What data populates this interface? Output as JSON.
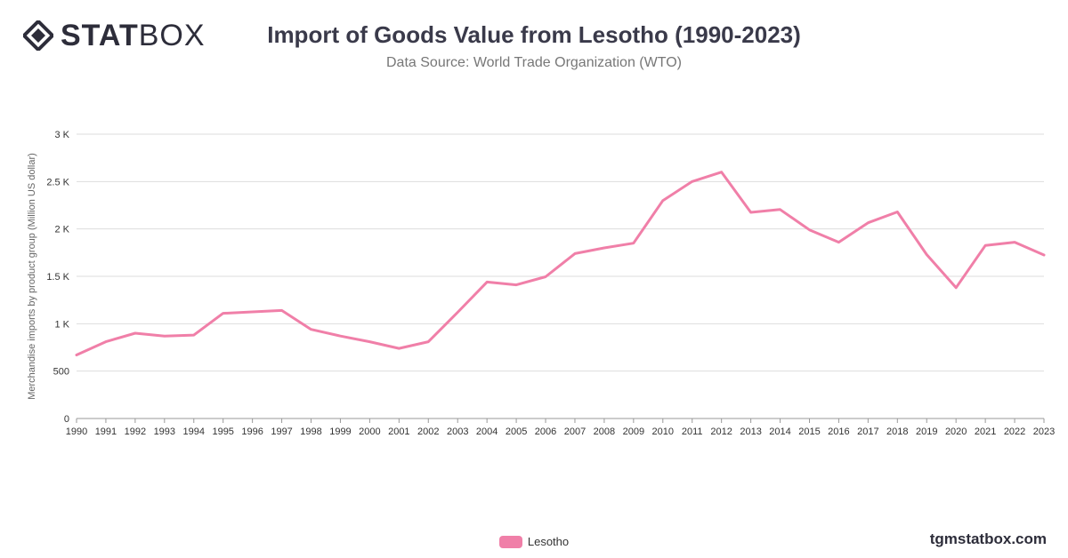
{
  "header": {
    "logo_bold": "STAT",
    "logo_light": "BOX",
    "title": "Import of Goods Value from Lesotho (1990-2023)",
    "subtitle": "Data Source: World Trade Organization (WTO)"
  },
  "footer": {
    "watermark": "tgmstatbox.com"
  },
  "colors": {
    "line": "#f07fa8",
    "grid": "#dddddd",
    "axis_text": "#333333",
    "logo": "#2d2d3a"
  },
  "chart_data": {
    "type": "line",
    "title": "Import of Goods Value from Lesotho (1990-2023)",
    "subtitle": "Data Source: World Trade Organization (WTO)",
    "xlabel": "",
    "ylabel": "Merchandise imports by product group (Million US dollar)",
    "ylim": [
      0,
      3000
    ],
    "yticks": [
      0,
      500,
      1000,
      1500,
      2000,
      2500,
      3000
    ],
    "ytick_labels": [
      "0",
      "500",
      "1 K",
      "1.5 K",
      "2 K",
      "2.5 K",
      "3 K"
    ],
    "grid": true,
    "legend_position": "bottom-center",
    "x": [
      "1990",
      "1991",
      "1992",
      "1993",
      "1994",
      "1995",
      "1996",
      "1997",
      "1998",
      "1999",
      "2000",
      "2001",
      "2002",
      "2003",
      "2004",
      "2005",
      "2006",
      "2007",
      "2008",
      "2009",
      "2010",
      "2011",
      "2012",
      "2013",
      "2014",
      "2015",
      "2016",
      "2017",
      "2018",
      "2019",
      "2020",
      "2021",
      "2022",
      "2023"
    ],
    "series": [
      {
        "name": "Lesotho",
        "color": "#f07fa8",
        "values": [
          670,
          810,
          900,
          870,
          880,
          1110,
          1125,
          1140,
          940,
          870,
          810,
          740,
          810,
          1120,
          1440,
          1410,
          1495,
          1740,
          1800,
          1850,
          2300,
          2500,
          2600,
          2175,
          2205,
          1990,
          1860,
          2065,
          2180,
          1730,
          1380,
          1825,
          1860,
          1725
        ]
      }
    ]
  }
}
